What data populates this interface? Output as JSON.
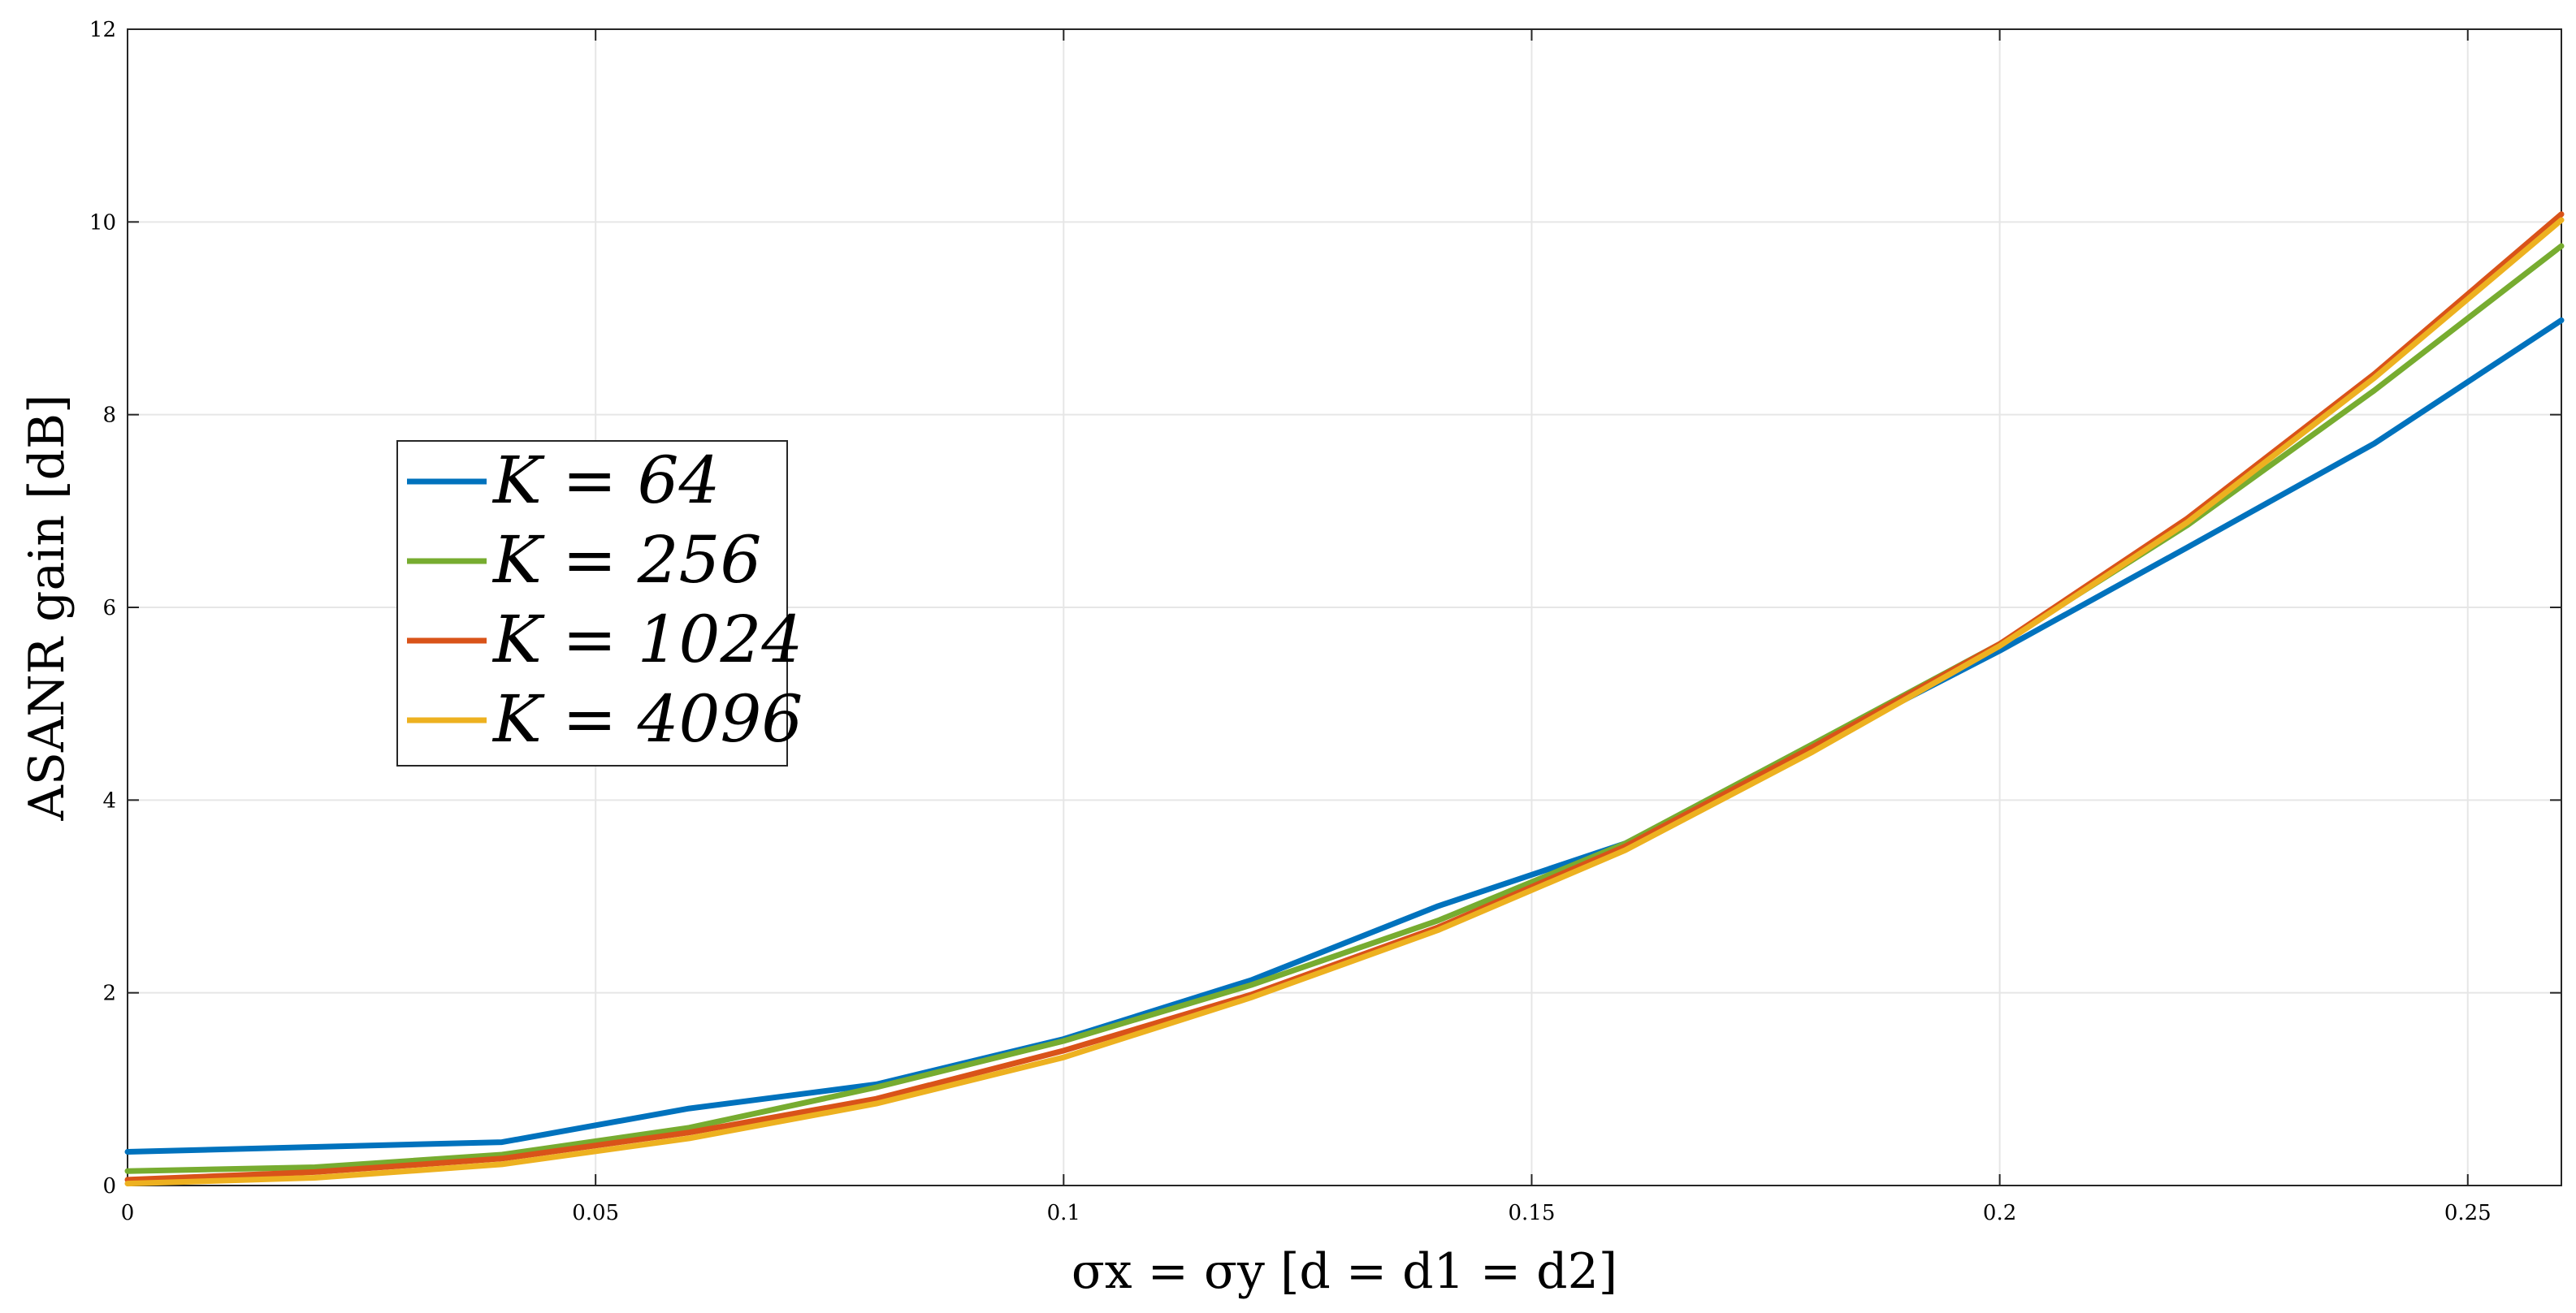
{
  "chart_data": {
    "type": "line",
    "title": "",
    "xlabel": "σx = σy [d = d1 = d2]",
    "ylabel": "ASANR gain [dB]",
    "xlim": [
      0,
      0.26
    ],
    "ylim": [
      0,
      12
    ],
    "xticks": [
      0,
      0.05,
      0.1,
      0.15,
      0.2,
      0.25
    ],
    "xtick_labels": [
      "0",
      "0.05",
      "0.1",
      "0.15",
      "0.2",
      "0.25"
    ],
    "yticks": [
      0,
      2,
      4,
      6,
      8,
      10,
      12
    ],
    "ytick_labels": [
      "0",
      "2",
      "4",
      "6",
      "8",
      "10",
      "12"
    ],
    "grid": true,
    "legend_position": "middle-left",
    "x": [
      0,
      0.02,
      0.04,
      0.06,
      0.08,
      0.1,
      0.12,
      0.14,
      0.16,
      0.18,
      0.2,
      0.22,
      0.24,
      0.26
    ],
    "series": [
      {
        "name": "K = 64",
        "color": "#0072BD",
        "values": [
          0.35,
          0.4,
          0.45,
          0.8,
          1.05,
          1.52,
          2.13,
          2.9,
          3.55,
          4.55,
          5.55,
          6.62,
          7.7,
          8.98
        ]
      },
      {
        "name": "K = 256",
        "color": "#77AC30",
        "values": [
          0.15,
          0.19,
          0.32,
          0.6,
          1.02,
          1.5,
          2.08,
          2.75,
          3.55,
          4.58,
          5.62,
          6.85,
          8.25,
          9.75
        ]
      },
      {
        "name": "K = 1024",
        "color": "#D95319",
        "values": [
          0.06,
          0.14,
          0.28,
          0.55,
          0.9,
          1.4,
          1.98,
          2.68,
          3.52,
          4.55,
          5.62,
          6.92,
          8.42,
          10.08
        ]
      },
      {
        "name": "K = 4096",
        "color": "#EDB120",
        "values": [
          0.02,
          0.08,
          0.22,
          0.49,
          0.85,
          1.33,
          1.95,
          2.65,
          3.48,
          4.5,
          5.6,
          6.88,
          8.38,
          10.02
        ]
      }
    ]
  }
}
